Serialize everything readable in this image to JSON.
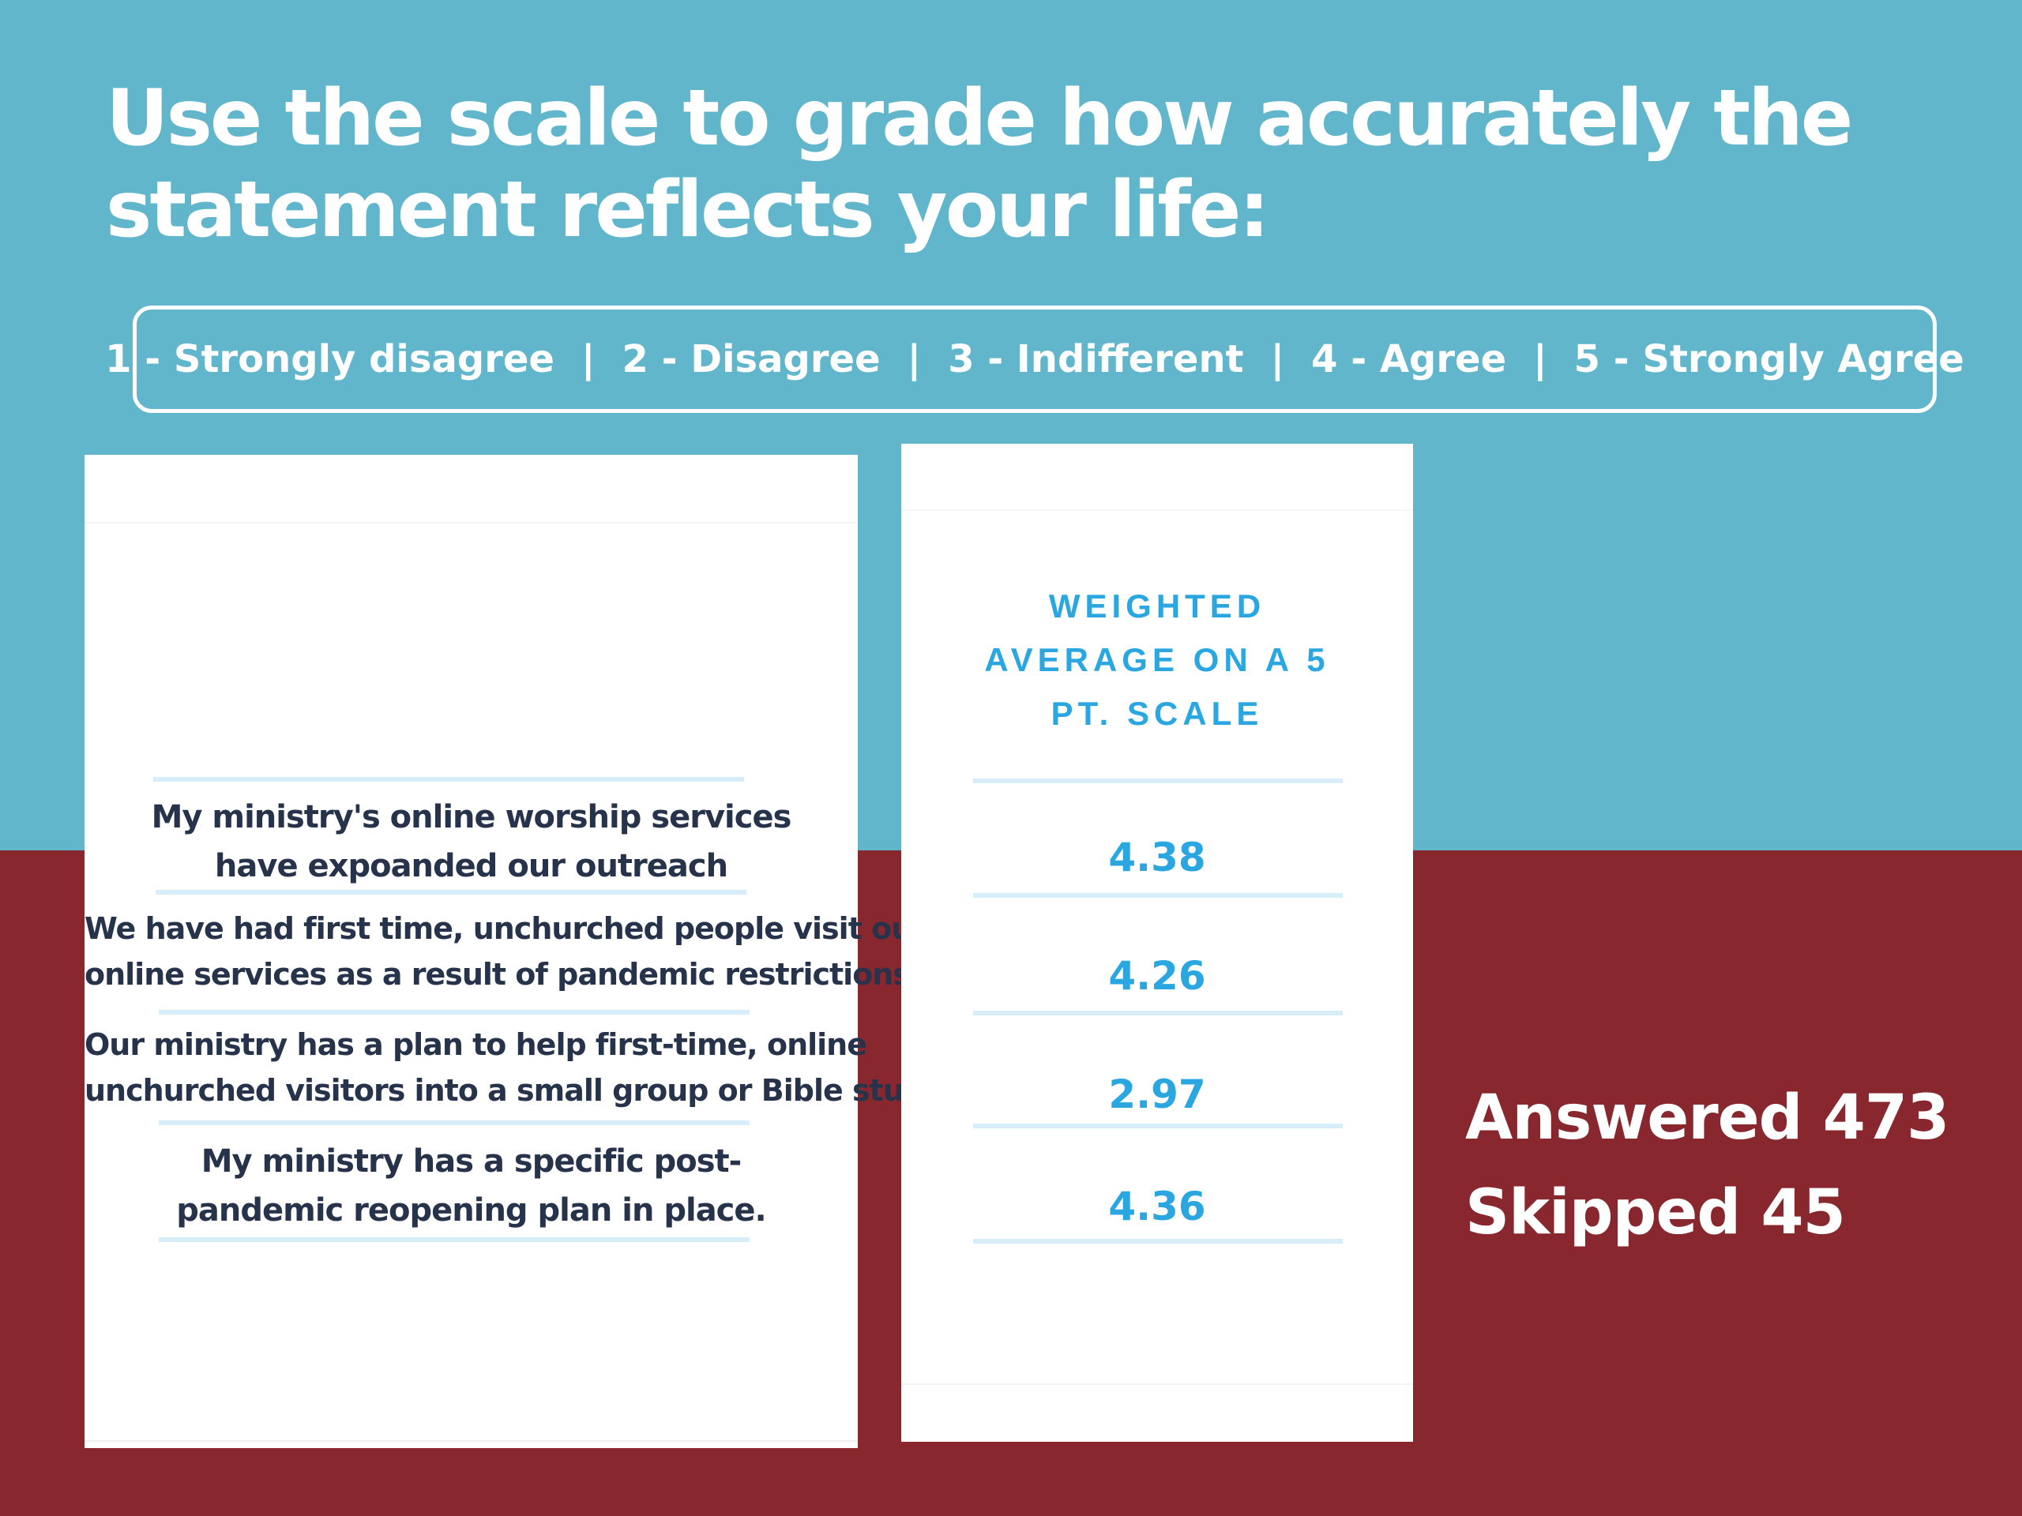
{
  "title": {
    "line1": "Use the scale to grade how accurately the",
    "line2": "statement reflects your life:"
  },
  "scale": [
    "1 - Strongly disagree",
    "2 - Disagree",
    "3 - Indifferent",
    "4 - Agree",
    "5 - Strongly Agree"
  ],
  "scale_separator": "|",
  "column_header": {
    "line1": "WEIGHTED",
    "line2": "AVERAGE ON A 5",
    "line3": "PT. SCALE"
  },
  "summary": {
    "answered": "Answered 473",
    "skipped": "Skipped 45"
  },
  "colors": {
    "top_background": "#62b6cb",
    "bottom_background": "#88272e",
    "accent_blue": "#2aa6e1",
    "statement_text": "#27334a",
    "rule": "#d7eefa"
  },
  "chart_data": {
    "type": "table",
    "columns": [
      "",
      "WEIGHTED AVERAGE ON A 5 PT. SCALE"
    ],
    "rows": [
      {
        "statement": [
          "My ministry's online worship services",
          "have expoanded our outreach"
        ],
        "weighted_average": "4.38"
      },
      {
        "statement": [
          "We have had first time, unchurched people visit our",
          "online services as a result of pandemic restrictions."
        ],
        "weighted_average": "4.26"
      },
      {
        "statement": [
          "Our ministry has a plan to help first-time, online",
          "unchurched visitors into a small group or Bible study"
        ],
        "weighted_average": "2.97"
      },
      {
        "statement": [
          "My ministry has a specific post-",
          "pandemic reopening plan in place."
        ],
        "weighted_average": "4.36"
      }
    ]
  }
}
